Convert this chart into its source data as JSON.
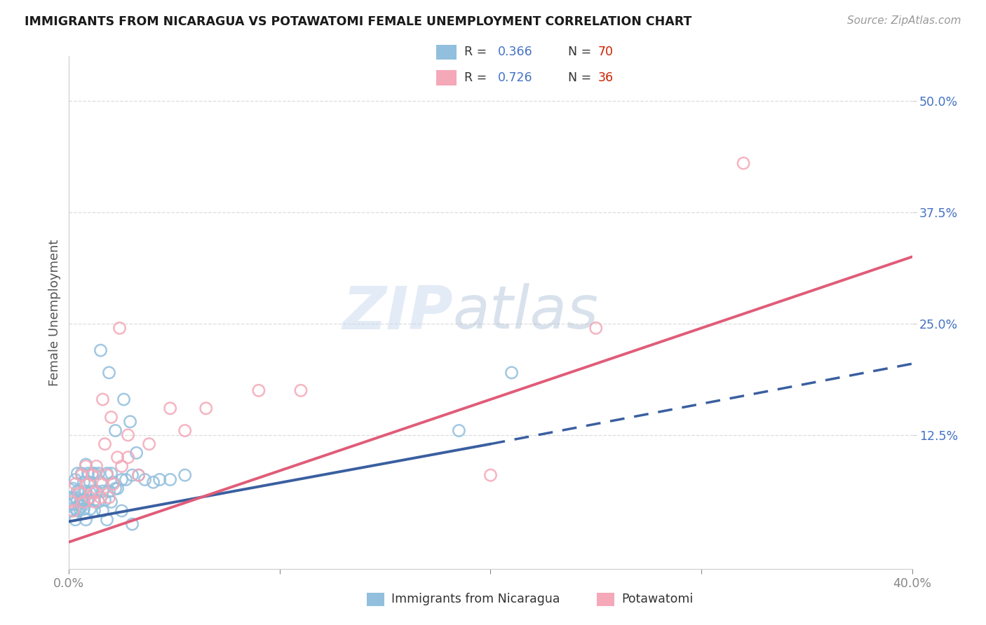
{
  "title": "IMMIGRANTS FROM NICARAGUA VS POTAWATOMI FEMALE UNEMPLOYMENT CORRELATION CHART",
  "source": "Source: ZipAtlas.com",
  "ylabel": "Female Unemployment",
  "xlim": [
    0.0,
    0.4
  ],
  "ylim": [
    -0.025,
    0.55
  ],
  "ytick_positions": [
    0.125,
    0.25,
    0.375,
    0.5
  ],
  "ytick_labels": [
    "12.5%",
    "25.0%",
    "37.5%",
    "50.0%"
  ],
  "xtick_positions": [
    0.0,
    0.1,
    0.2,
    0.3,
    0.4
  ],
  "xtick_labels": [
    "0.0%",
    "",
    "",
    "",
    "40.0%"
  ],
  "legend_label1": "Immigrants from Nicaragua",
  "legend_label2": "Potawatomi",
  "legend_r1": "0.366",
  "legend_n1": "70",
  "legend_r2": "0.726",
  "legend_n2": "36",
  "color_blue": "#92bfdd",
  "color_pink": "#f4a8b8",
  "color_blue_line": "#3a5fa0",
  "color_pink_line": "#e05c78",
  "color_blue_dark": "#4472c4",
  "color_n_red": "#cc2200",
  "color_title": "#1a1a1a",
  "color_source": "#999999",
  "color_ylabel": "#555555",
  "color_tick_right": "#4472c4",
  "color_grid": "#dddddd",
  "background": "#ffffff",
  "watermark_zip": "ZIP",
  "watermark_atlas": "atlas",
  "blue_x": [
    0.001,
    0.001,
    0.002,
    0.002,
    0.002,
    0.003,
    0.003,
    0.003,
    0.004,
    0.004,
    0.004,
    0.005,
    0.005,
    0.005,
    0.006,
    0.006,
    0.006,
    0.007,
    0.007,
    0.007,
    0.008,
    0.008,
    0.009,
    0.009,
    0.01,
    0.01,
    0.011,
    0.011,
    0.012,
    0.012,
    0.013,
    0.014,
    0.015,
    0.016,
    0.017,
    0.018,
    0.019,
    0.02,
    0.021,
    0.022,
    0.023,
    0.025,
    0.027,
    0.03,
    0.033,
    0.036,
    0.04,
    0.043,
    0.048,
    0.055,
    0.003,
    0.004,
    0.006,
    0.008,
    0.01,
    0.012,
    0.014,
    0.016,
    0.018,
    0.02,
    0.025,
    0.03,
    0.185,
    0.21,
    0.015,
    0.019,
    0.022,
    0.026,
    0.029,
    0.032
  ],
  "blue_y": [
    0.04,
    0.055,
    0.035,
    0.065,
    0.048,
    0.055,
    0.075,
    0.042,
    0.062,
    0.052,
    0.082,
    0.042,
    0.062,
    0.048,
    0.052,
    0.082,
    0.045,
    0.052,
    0.072,
    0.042,
    0.062,
    0.092,
    0.082,
    0.052,
    0.072,
    0.042,
    0.062,
    0.082,
    0.052,
    0.082,
    0.062,
    0.082,
    0.072,
    0.062,
    0.052,
    0.082,
    0.062,
    0.082,
    0.072,
    0.065,
    0.065,
    0.075,
    0.075,
    0.08,
    0.08,
    0.075,
    0.072,
    0.075,
    0.075,
    0.08,
    0.03,
    0.04,
    0.05,
    0.03,
    0.06,
    0.04,
    0.05,
    0.04,
    0.03,
    0.05,
    0.04,
    0.025,
    0.13,
    0.195,
    0.22,
    0.195,
    0.13,
    0.165,
    0.14,
    0.105
  ],
  "pink_x": [
    0.001,
    0.002,
    0.003,
    0.005,
    0.006,
    0.007,
    0.008,
    0.009,
    0.01,
    0.011,
    0.012,
    0.013,
    0.015,
    0.016,
    0.017,
    0.018,
    0.019,
    0.021,
    0.023,
    0.025,
    0.028,
    0.033,
    0.038,
    0.048,
    0.055,
    0.065,
    0.09,
    0.11,
    0.2,
    0.25,
    0.016,
    0.02,
    0.024,
    0.028,
    0.32,
    0.012
  ],
  "pink_y": [
    0.05,
    0.04,
    0.07,
    0.06,
    0.08,
    0.05,
    0.09,
    0.07,
    0.055,
    0.08,
    0.05,
    0.09,
    0.055,
    0.07,
    0.115,
    0.08,
    0.055,
    0.07,
    0.1,
    0.09,
    0.1,
    0.08,
    0.115,
    0.155,
    0.13,
    0.155,
    0.175,
    0.175,
    0.08,
    0.245,
    0.165,
    0.145,
    0.245,
    0.125,
    0.43,
    0.06
  ],
  "blue_line_x0": 0.0,
  "blue_line_x_solid_end": 0.2,
  "blue_line_x1": 0.4,
  "blue_line_y0": 0.028,
  "blue_line_y_solid_end": 0.115,
  "blue_line_y1": 0.205,
  "pink_line_x0": 0.0,
  "pink_line_x1": 0.4,
  "pink_line_y0": 0.005,
  "pink_line_y1": 0.325
}
